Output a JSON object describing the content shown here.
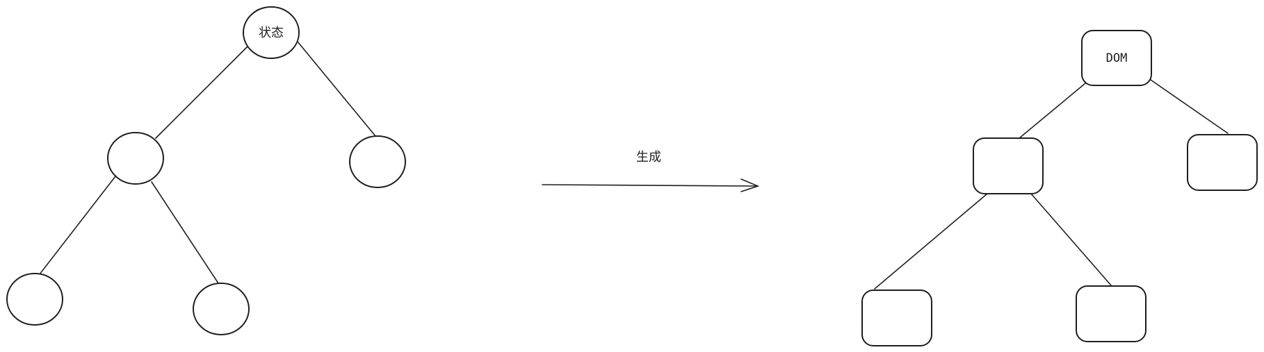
{
  "state_tree": {
    "root_label": "状态"
  },
  "arrow": {
    "label": "生成"
  },
  "dom_tree": {
    "root_label": "DOM"
  },
  "colors": {
    "stroke": "#1e1e1e",
    "background": "#ffffff"
  }
}
